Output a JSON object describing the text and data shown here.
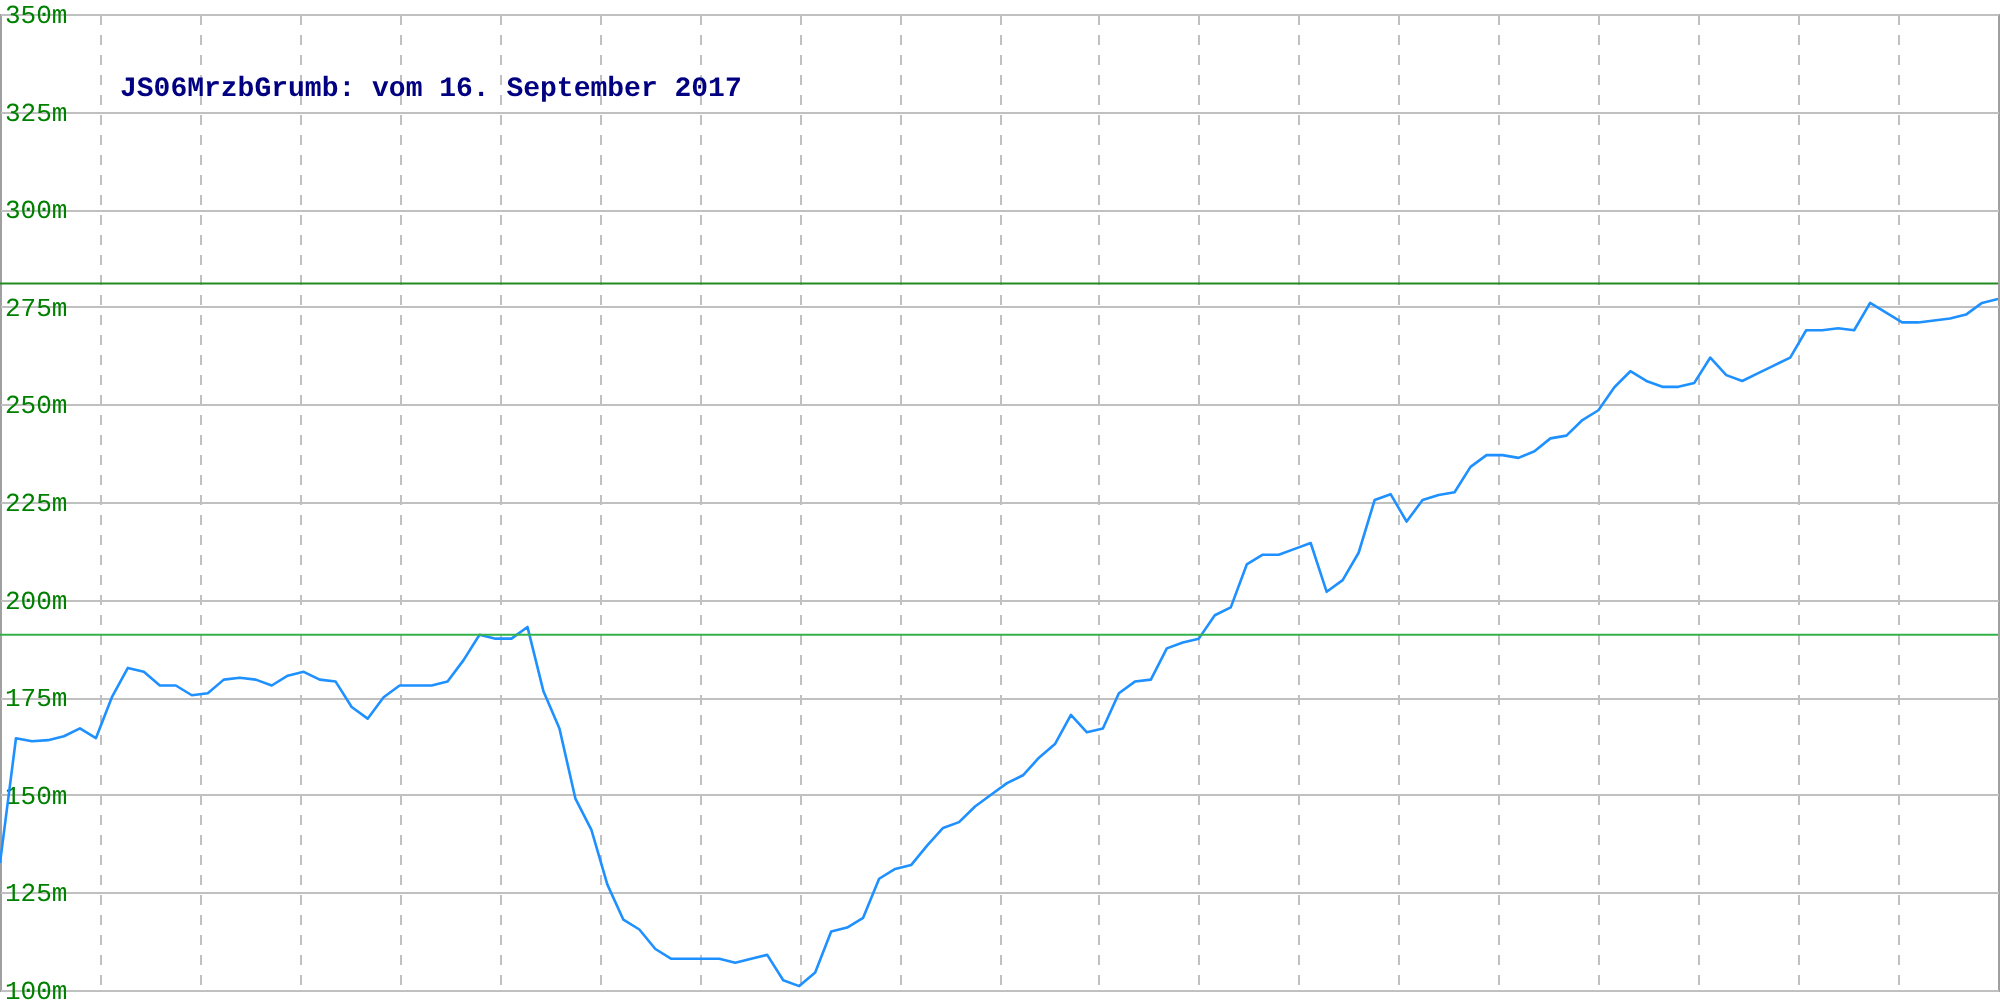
{
  "chart_data": {
    "type": "line",
    "title": "JS06MrzbGrumb: vom 16. September 2017",
    "categories": [
      null,
      null,
      null,
      null,
      null,
      null,
      null,
      null,
      null,
      null,
      null,
      null,
      null,
      null,
      null,
      null,
      null,
      null,
      null,
      null,
      null,
      null,
      null,
      null,
      null,
      null,
      null,
      null,
      null,
      null,
      null,
      null,
      null,
      null,
      null,
      null,
      null,
      null,
      null,
      null,
      null,
      null,
      null,
      null,
      null,
      null,
      null,
      null,
      null,
      null,
      null,
      null,
      null,
      null,
      null,
      null,
      null,
      null,
      null,
      null,
      null,
      null,
      null,
      null,
      null,
      null,
      null,
      null,
      null,
      null,
      null,
      null,
      null,
      null,
      null,
      null,
      null,
      null,
      null,
      null,
      null,
      null,
      null,
      null,
      null,
      null,
      null,
      null,
      null,
      null,
      null,
      null,
      null,
      null,
      null,
      null,
      null,
      null,
      null,
      null,
      null,
      null,
      null,
      null,
      null,
      null,
      null,
      null,
      null,
      null,
      null,
      null,
      null,
      null,
      null,
      null,
      null,
      null,
      null,
      null,
      null,
      null,
      null,
      null,
      null,
      null
    ],
    "series": [
      {
        "color": "#1e90ff",
        "values": [
          132.5,
          164.5,
          163.7,
          164,
          165,
          167,
          164.5,
          175,
          182.5,
          181.5,
          178,
          178,
          175.5,
          176,
          179.5,
          180,
          179.5,
          178,
          180.5,
          181.5,
          179.5,
          179,
          172.5,
          169.5,
          175,
          178,
          178,
          178,
          179,
          184.5,
          191,
          190,
          190,
          193,
          176.5,
          167,
          149,
          141,
          127,
          118,
          115.5,
          110.5,
          108,
          108,
          108,
          108,
          107,
          108,
          109,
          102.5,
          101,
          104.5,
          115,
          116,
          118.5,
          128.5,
          131,
          132,
          137,
          141.5,
          143,
          147,
          150,
          153,
          155,
          159.5,
          163,
          170.5,
          166,
          167,
          176,
          179,
          179.5,
          187.5,
          189,
          190,
          196,
          198,
          209,
          211.5,
          211.5,
          213,
          214.5,
          202,
          205,
          212,
          225.5,
          227,
          220,
          225.5,
          226.8,
          227.5,
          234,
          237,
          237,
          236.3,
          238,
          241.3,
          242,
          246,
          248.5,
          254.4,
          258.5,
          256,
          254.5,
          254.5,
          255.5,
          262,
          257.5,
          256,
          258,
          260,
          262,
          269,
          269,
          269.5,
          269,
          276,
          273.5,
          271,
          271,
          271.5,
          272,
          273,
          276,
          277
        ]
      }
    ],
    "ylim": [
      100,
      350
    ],
    "yticks": [
      {
        "value": 100,
        "label": "100m"
      },
      {
        "value": 125,
        "label": "125m"
      },
      {
        "value": 150,
        "label": "150m"
      },
      {
        "value": 175,
        "label": "175m"
      },
      {
        "value": 200,
        "label": "200m"
      },
      {
        "value": 225,
        "label": "225m"
      },
      {
        "value": 250,
        "label": "250m"
      },
      {
        "value": 275,
        "label": "275m"
      },
      {
        "value": 300,
        "label": "300m"
      },
      {
        "value": 325,
        "label": "325m"
      },
      {
        "value": 350,
        "label": "350m"
      }
    ],
    "ref_lines": [
      {
        "axis": "y",
        "value": 281,
        "color": "#228b22"
      },
      {
        "axis": "y",
        "value": 191,
        "color": "#33b24a"
      }
    ],
    "grid": true,
    "tick_labels": "y",
    "marker": "none",
    "line_style": "solid"
  }
}
